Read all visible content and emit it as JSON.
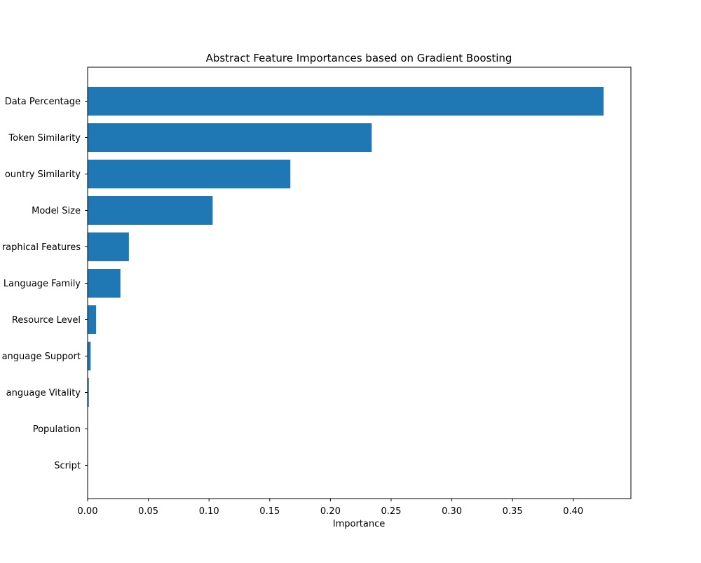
{
  "chart_data": {
    "type": "bar",
    "orientation": "horizontal",
    "title": "Abstract Feature Importances based on Gradient Boosting",
    "xlabel": "Importance",
    "ylabel": "",
    "xlim": [
      0,
      0.4475
    ],
    "xticks": [
      0.0,
      0.05,
      0.1,
      0.15,
      0.2,
      0.25,
      0.3,
      0.35,
      0.4
    ],
    "xtick_labels": [
      "0.00",
      "0.05",
      "0.10",
      "0.15",
      "0.20",
      "0.25",
      "0.30",
      "0.35",
      "0.40"
    ],
    "grid": false,
    "bar_color": "#1f77b4",
    "categories": [
      "Data Percentage",
      "Token Similarity",
      "ountry Similarity",
      "Model Size",
      "raphical Features",
      "Language Family",
      "Resource Level",
      "anguage Support",
      "anguage Vitality",
      "Population",
      "Script"
    ],
    "values": [
      0.425,
      0.234,
      0.167,
      0.103,
      0.034,
      0.027,
      0.007,
      0.0025,
      0.001,
      0.0002,
      0.0001
    ]
  }
}
